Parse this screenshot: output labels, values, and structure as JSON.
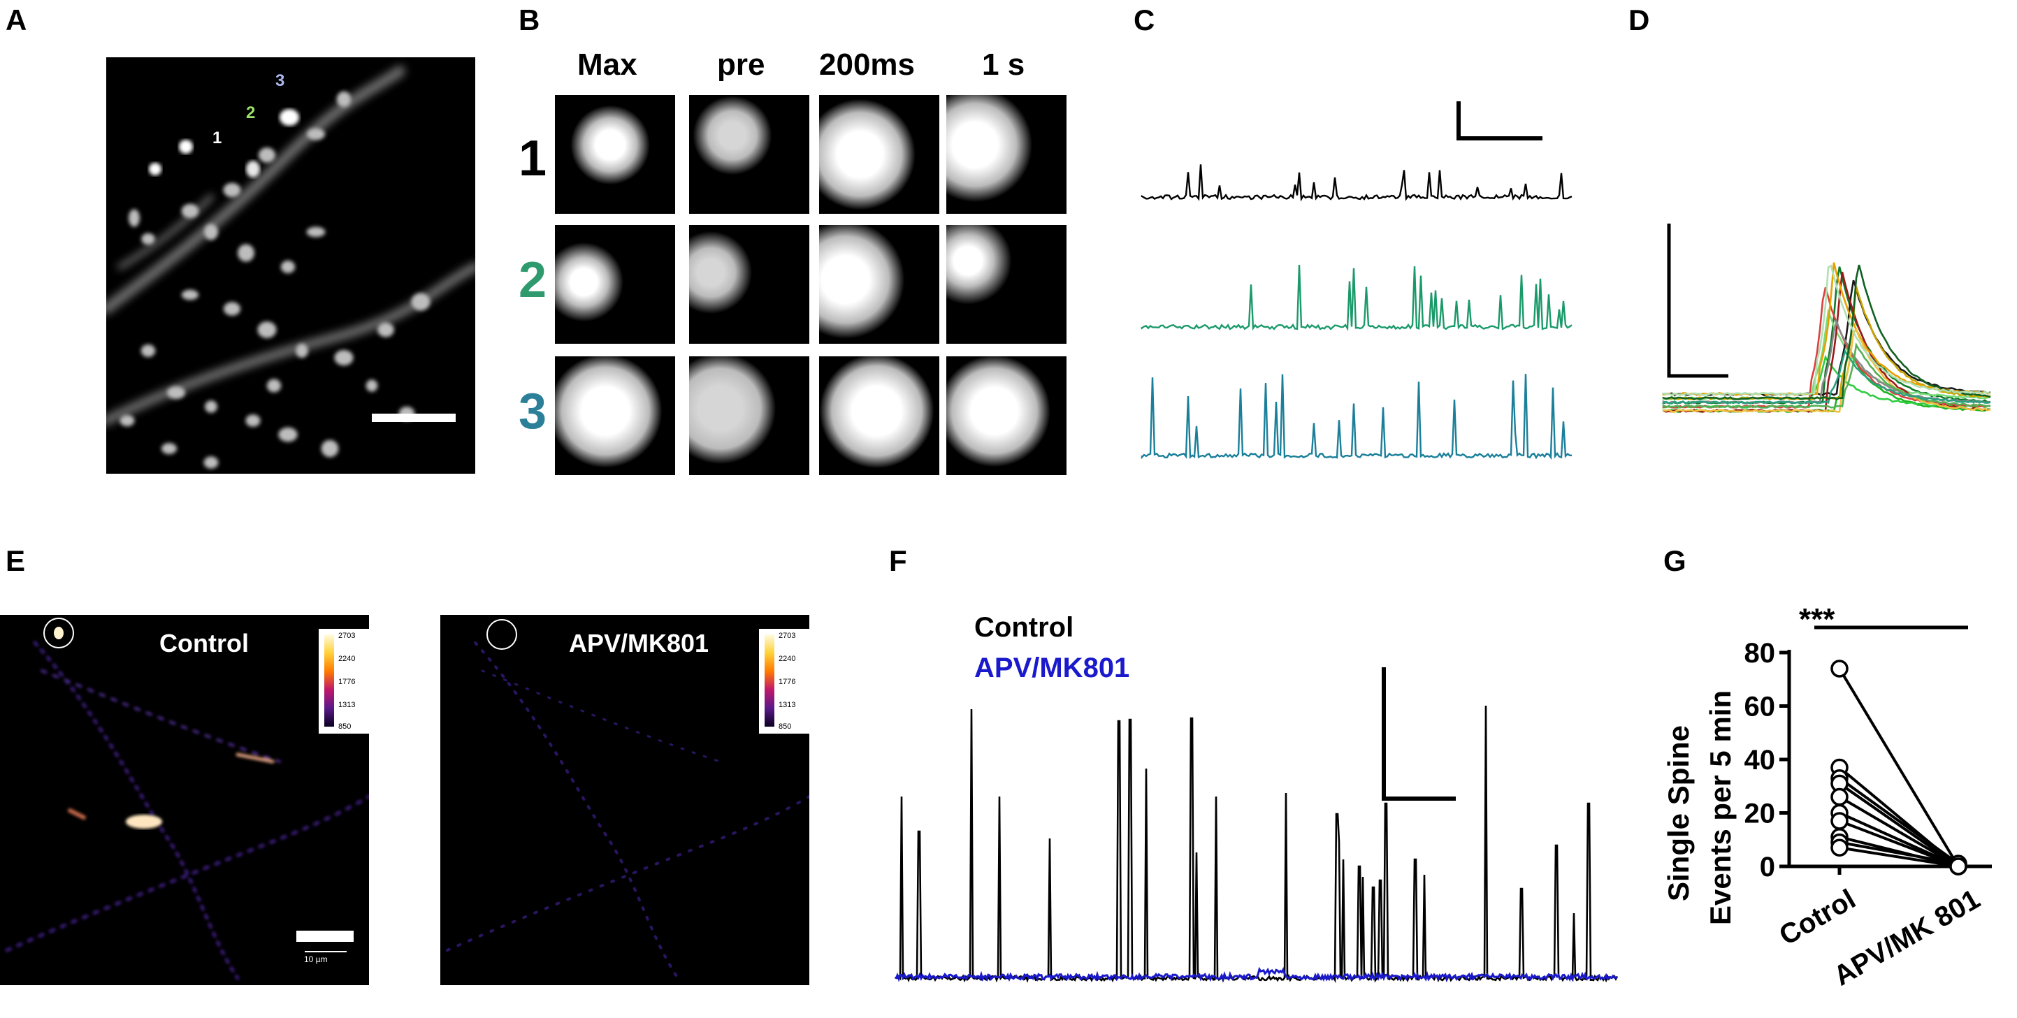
{
  "panels": {
    "A": "A",
    "B": "B",
    "C": "C",
    "D": "D",
    "E": "E",
    "F": "F",
    "G": "G"
  },
  "panel_a": {
    "spine_labels": [
      "1",
      "2",
      "3"
    ],
    "spine_label_colors": [
      "#ffffff",
      "#9be36a",
      "#aab8ee"
    ]
  },
  "panel_b": {
    "column_headers": [
      "Max",
      "pre",
      "200ms",
      "1 s"
    ],
    "row_labels": [
      "1",
      "2",
      "3"
    ],
    "row_label_colors": [
      "#000000",
      "#2e9a6e",
      "#2b7f98"
    ]
  },
  "panel_c": {
    "trace_colors": [
      "#000000",
      "#1a9a6a",
      "#1a7f9a"
    ]
  },
  "panel_e": {
    "control_label": "Control",
    "treatment_label": "APV/MK801",
    "colorbar_ticks": [
      "2703",
      "2240",
      "1776",
      "1313",
      "850"
    ],
    "scalebar_label": "10 µm"
  },
  "panel_f": {
    "legend": [
      {
        "label": "Control",
        "color": "#000000"
      },
      {
        "label": "APV/MK801",
        "color": "#1a1acc"
      }
    ]
  },
  "panel_g": {
    "significance": "***",
    "chart_data": {
      "type": "scatter",
      "ylabel_line1": "Single Spine",
      "ylabel_line2": "Events per 5 min",
      "categories": [
        "Cotrol",
        "APV/MK 801"
      ],
      "ylim": [
        0,
        80
      ],
      "yticks": [
        "0",
        "20",
        "40",
        "60",
        "80"
      ],
      "paired_values": [
        [
          74,
          0
        ],
        [
          37,
          0
        ],
        [
          33,
          1
        ],
        [
          31,
          0
        ],
        [
          26,
          0
        ],
        [
          20,
          0
        ],
        [
          17,
          0
        ],
        [
          11,
          0
        ],
        [
          9,
          1
        ],
        [
          7,
          0
        ]
      ]
    }
  }
}
